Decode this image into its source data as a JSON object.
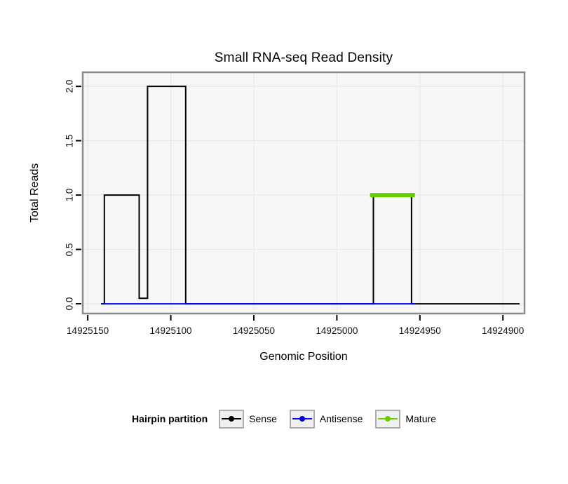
{
  "title": "Small RNA-seq Read Density",
  "axes": {
    "x_label": "Genomic Position",
    "y_label": "Total Reads"
  },
  "legend": {
    "title": "Hairpin partition",
    "items": [
      {
        "label": "Sense",
        "color": "#000000"
      },
      {
        "label": "Antisense",
        "color": "#0000EE"
      },
      {
        "label": "Mature",
        "color": "#66CD00"
      }
    ]
  },
  "chart_data": {
    "type": "line",
    "title": "Small RNA-seq Read Density",
    "xlabel": "Genomic Position",
    "ylabel": "Total Reads",
    "x_axis_reversed": true,
    "grid": true,
    "legend_position": "bottom",
    "panel_fill": "#F7F7F7",
    "grid_color": "#E6E6E6",
    "frame_color": "#8A8A8A",
    "x_ticks": [
      14925150,
      14925100,
      14925050,
      14925000,
      14924950,
      14924900
    ],
    "x_tick_labels": [
      "14925150",
      "14925100",
      "14925050",
      "14925000",
      "14924950",
      "14924900"
    ],
    "y_ticks": [
      0,
      0.5,
      1,
      1.5,
      2
    ],
    "y_tick_labels": [
      "0.0",
      "0.5",
      "1.0",
      "1.5",
      "2.0"
    ],
    "x_domain": [
      14925153,
      14924887
    ],
    "y_domain": [
      -0.09,
      2.13
    ],
    "series": [
      {
        "name": "Sense",
        "color": "#000000",
        "width": 2,
        "points": [
          [
            14925142,
            0
          ],
          [
            14925140,
            0
          ],
          [
            14925140,
            1
          ],
          [
            14925119,
            1
          ],
          [
            14925119,
            0.05
          ],
          [
            14925114,
            0.05
          ],
          [
            14925114,
            2
          ],
          [
            14925091,
            2
          ],
          [
            14925091,
            0
          ],
          [
            14924978,
            0
          ],
          [
            14924978,
            1
          ],
          [
            14924955,
            1
          ],
          [
            14924955,
            0
          ],
          [
            14924890,
            0
          ]
        ]
      },
      {
        "name": "Antisense",
        "color": "#0000EE",
        "width": 2,
        "points": [
          [
            14925141,
            0
          ],
          [
            14924953,
            0
          ]
        ]
      },
      {
        "name": "Mature",
        "color": "#66CD00",
        "width": 6,
        "points": [
          [
            14924980,
            1
          ],
          [
            14924953,
            1
          ]
        ]
      }
    ]
  }
}
